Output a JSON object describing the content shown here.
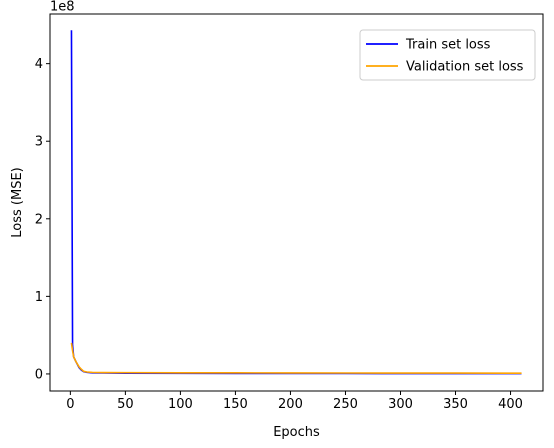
{
  "chart_data": {
    "type": "line",
    "xlabel": "Epochs",
    "ylabel": "Loss (MSE)",
    "y_offset_text": "1e8",
    "xlim": [
      -18.5,
      429.5
    ],
    "ylim": [
      -0.22,
      4.64
    ],
    "y_units_multiplier": 100000000,
    "x_ticks": [
      0,
      50,
      100,
      150,
      200,
      250,
      300,
      350,
      400
    ],
    "y_ticks": [
      0,
      1,
      2,
      3,
      4
    ],
    "grid": false,
    "legend_position": "upper right",
    "series": [
      {
        "name": "Train set loss",
        "color": "#0000ff",
        "points": [
          [
            1,
            4.43
          ],
          [
            2,
            0.37
          ],
          [
            3,
            0.22
          ],
          [
            5,
            0.16
          ],
          [
            8,
            0.08
          ],
          [
            10,
            0.05
          ],
          [
            12,
            0.03
          ],
          [
            15,
            0.02
          ],
          [
            20,
            0.015
          ],
          [
            30,
            0.012
          ],
          [
            50,
            0.01
          ],
          [
            100,
            0.008
          ],
          [
            150,
            0.007
          ],
          [
            200,
            0.006
          ],
          [
            250,
            0.006
          ],
          [
            300,
            0.005
          ],
          [
            350,
            0.005
          ],
          [
            410,
            0.005
          ]
        ]
      },
      {
        "name": "Validation set loss",
        "color": "#ffa500",
        "points": [
          [
            1,
            0.4
          ],
          [
            2,
            0.3
          ],
          [
            3,
            0.22
          ],
          [
            5,
            0.16
          ],
          [
            8,
            0.09
          ],
          [
            10,
            0.06
          ],
          [
            12,
            0.035
          ],
          [
            15,
            0.025
          ],
          [
            20,
            0.02
          ],
          [
            30,
            0.018
          ],
          [
            50,
            0.017
          ],
          [
            100,
            0.015
          ],
          [
            150,
            0.014
          ],
          [
            200,
            0.013
          ],
          [
            250,
            0.012
          ],
          [
            300,
            0.011
          ],
          [
            350,
            0.011
          ],
          [
            410,
            0.01
          ]
        ]
      }
    ]
  }
}
